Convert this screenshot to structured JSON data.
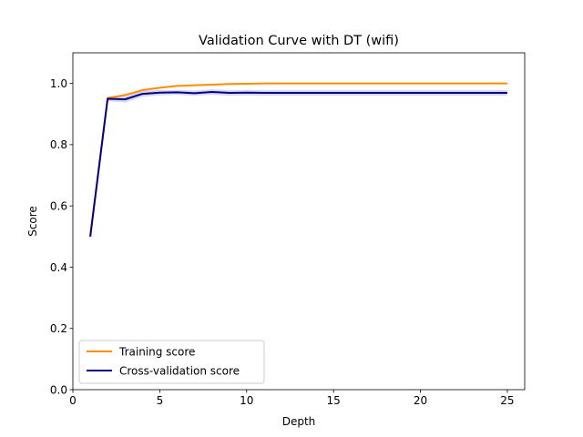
{
  "chart_data": {
    "type": "line",
    "title": "Validation Curve with DT (wifi)",
    "xlabel": "Depth",
    "ylabel": "Score",
    "xlim": [
      0,
      26
    ],
    "ylim": [
      0.0,
      1.1
    ],
    "xticks": [
      0,
      5,
      10,
      15,
      20,
      25
    ],
    "yticks": [
      0.0,
      0.2,
      0.4,
      0.6,
      0.8,
      1.0
    ],
    "xtick_labels": [
      "0",
      "5",
      "10",
      "15",
      "20",
      "25"
    ],
    "ytick_labels": [
      "0.0",
      "0.2",
      "0.4",
      "0.6",
      "0.8",
      "1.0"
    ],
    "legend_position": "lower-left",
    "x": [
      1,
      2,
      3,
      4,
      5,
      6,
      7,
      8,
      9,
      10,
      11,
      12,
      13,
      14,
      15,
      16,
      17,
      18,
      19,
      20,
      21,
      22,
      23,
      24,
      25
    ],
    "series": [
      {
        "name": "Training score",
        "color": "#ff8c00",
        "band_color": "#ff8c00",
        "values": [
          0.5,
          0.952,
          0.962,
          0.978,
          0.986,
          0.992,
          0.994,
          0.996,
          0.998,
          0.999,
          1.0,
          1.0,
          1.0,
          1.0,
          1.0,
          1.0,
          1.0,
          1.0,
          1.0,
          1.0,
          1.0,
          1.0,
          1.0,
          1.0,
          1.0
        ],
        "std": [
          0.002,
          0.003,
          0.003,
          0.003,
          0.002,
          0.002,
          0.002,
          0.001,
          0.001,
          0.001,
          0.0,
          0.0,
          0.0,
          0.0,
          0.0,
          0.0,
          0.0,
          0.0,
          0.0,
          0.0,
          0.0,
          0.0,
          0.0,
          0.0,
          0.0
        ]
      },
      {
        "name": "Cross-validation score",
        "color": "#000080",
        "band_color": "#3333cc",
        "values": [
          0.5,
          0.95,
          0.948,
          0.966,
          0.97,
          0.971,
          0.968,
          0.972,
          0.969,
          0.97,
          0.969,
          0.969,
          0.969,
          0.969,
          0.969,
          0.969,
          0.969,
          0.969,
          0.969,
          0.969,
          0.969,
          0.969,
          0.969,
          0.969,
          0.969
        ],
        "std": [
          0.004,
          0.008,
          0.01,
          0.01,
          0.009,
          0.008,
          0.009,
          0.009,
          0.009,
          0.009,
          0.009,
          0.009,
          0.009,
          0.009,
          0.009,
          0.009,
          0.009,
          0.009,
          0.009,
          0.009,
          0.009,
          0.009,
          0.009,
          0.009,
          0.009
        ]
      }
    ]
  }
}
